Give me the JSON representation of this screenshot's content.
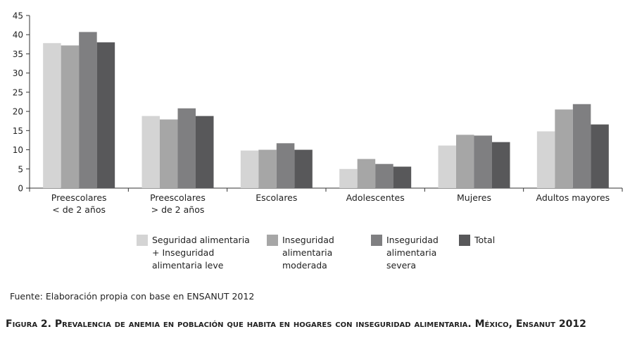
{
  "chart_data": {
    "type": "bar",
    "categories": [
      "Preescolares\n< de 2 años",
      "Preescolares\n> de 2 años",
      "Escolares",
      "Adolescentes",
      "Mujeres",
      "Adultos mayores"
    ],
    "series": [
      {
        "name": "Seguridad alimentaria\n+ Inseguridad\nalimentaria leve",
        "color": "#d4d4d4",
        "values": [
          37.8,
          18.8,
          9.8,
          5.0,
          11.1,
          14.8
        ]
      },
      {
        "name": "Inseguridad\nalimentaria\nmoderada",
        "color": "#a6a6a6",
        "values": [
          37.2,
          17.9,
          10.0,
          7.6,
          13.9,
          20.5
        ]
      },
      {
        "name": "Inseguridad\nalimentaria\nsevera",
        "color": "#7f7f81",
        "values": [
          40.7,
          20.8,
          11.7,
          6.3,
          13.7,
          21.9
        ]
      },
      {
        "name": "Total",
        "color": "#58585a",
        "values": [
          38.0,
          18.8,
          10.0,
          5.6,
          12.0,
          16.6
        ]
      }
    ],
    "y_ticks": [
      0,
      5,
      10,
      15,
      20,
      25,
      30,
      35,
      40,
      45
    ],
    "ylim": [
      0,
      45
    ],
    "title": "",
    "xlabel": "",
    "ylabel": "",
    "legend_position": "bottom"
  },
  "source_note": "Fuente: Elaboración propia con base en ENSANUT 2012",
  "caption": "Figura 2. Prevalencia de anemia en población que habita en hogares con inseguridad alimentaria. México, Ensanut 2012"
}
